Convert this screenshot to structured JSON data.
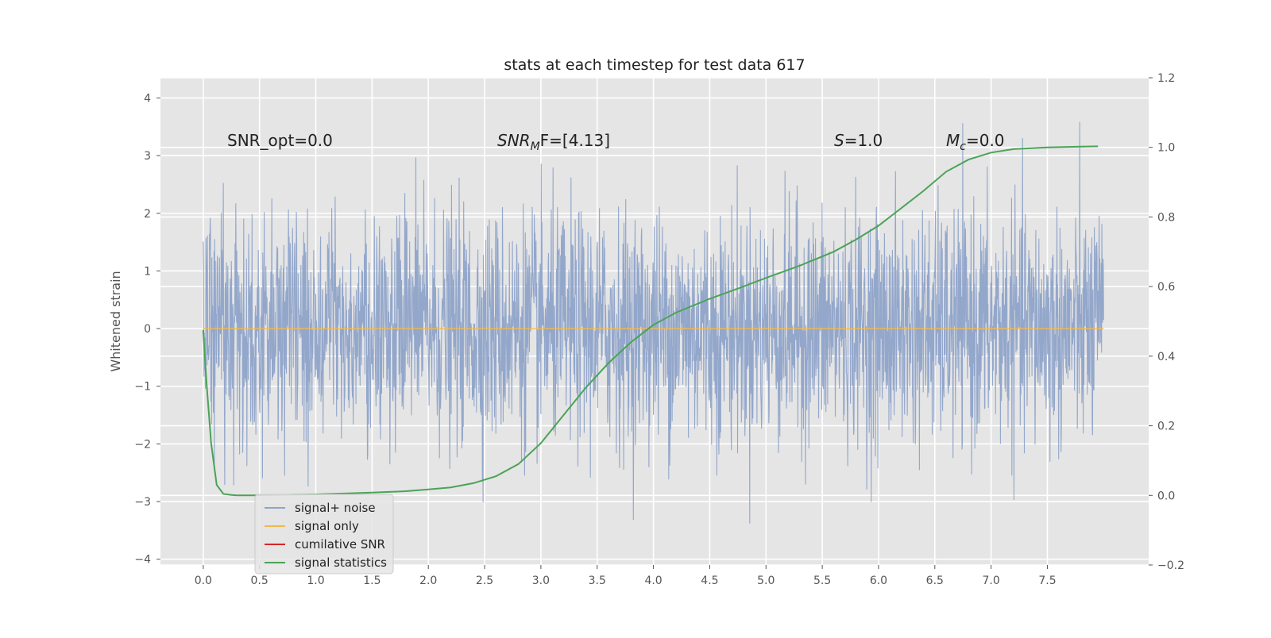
{
  "chart_data": {
    "type": "line",
    "title": "stats at each timestep for test data 617",
    "ylabel": "Whitened strain",
    "xlabel": "",
    "xlim": [
      -0.38,
      8.4
    ],
    "ylim": [
      -4.1,
      4.35
    ],
    "y2lim": [
      -0.2,
      1.2
    ],
    "xticks": [
      "0.0",
      "0.5",
      "1.0",
      "1.5",
      "2.0",
      "2.5",
      "3.0",
      "3.5",
      "4.0",
      "4.5",
      "5.0",
      "5.5",
      "6.0",
      "6.5",
      "7.0",
      "7.5"
    ],
    "yticks": [
      "4",
      "3",
      "2",
      "1",
      "0",
      "−1",
      "−2",
      "−3",
      "−4"
    ],
    "y2ticks": [
      "1.2",
      "1.0",
      "0.8",
      "0.6",
      "0.4",
      "0.2",
      "0.0",
      "−0.2"
    ],
    "grid": true,
    "legend_position": "lower-left",
    "annotations": {
      "snr_opt": "SNR_opt=0.0",
      "snr_mf_main": "SNR",
      "snr_mf_sub": "M",
      "snr_mf_rest": "F=[4.13]",
      "s_main": "S",
      "s_rest": "=1.0",
      "mc_main": "M",
      "mc_sub": "c",
      "mc_rest": "=0.0"
    },
    "series": [
      {
        "name": "signal+ noise",
        "color": "#8ea3c9",
        "x_range": [
          0.0,
          8.0
        ],
        "amplitude_std": 1.0,
        "y_min": -3.7,
        "y_max": 4.0,
        "axis": "left"
      },
      {
        "name": "signal only",
        "color": "#f2b84b",
        "x": [
          0.0,
          8.0
        ],
        "values": [
          0.0,
          0.0
        ],
        "axis": "left"
      },
      {
        "name": "cumilative SNR",
        "color": "#d62728",
        "x": [],
        "values": [],
        "axis": "right"
      },
      {
        "name": "signal statistics",
        "color": "#4aa357",
        "axis": "right",
        "x": [
          0.0,
          0.03,
          0.07,
          0.12,
          0.18,
          0.25,
          0.3,
          0.45,
          0.6,
          0.8,
          1.0,
          1.2,
          1.5,
          1.8,
          2.0,
          2.2,
          2.4,
          2.6,
          2.8,
          3.0,
          3.2,
          3.4,
          3.6,
          3.8,
          4.0,
          4.2,
          4.5,
          4.8,
          5.0,
          5.3,
          5.6,
          5.8,
          6.0,
          6.2,
          6.4,
          6.6,
          6.8,
          7.0,
          7.2,
          7.5,
          7.8,
          7.95
        ],
        "values": [
          0.475,
          0.32,
          0.15,
          0.03,
          0.004,
          0.001,
          0.0,
          0.0,
          0.001,
          0.002,
          0.003,
          0.005,
          0.008,
          0.012,
          0.017,
          0.023,
          0.035,
          0.055,
          0.09,
          0.15,
          0.23,
          0.31,
          0.38,
          0.44,
          0.49,
          0.525,
          0.565,
          0.6,
          0.625,
          0.66,
          0.7,
          0.735,
          0.775,
          0.825,
          0.875,
          0.93,
          0.965,
          0.985,
          0.995,
          1.0,
          1.002,
          1.003
        ]
      }
    ]
  }
}
